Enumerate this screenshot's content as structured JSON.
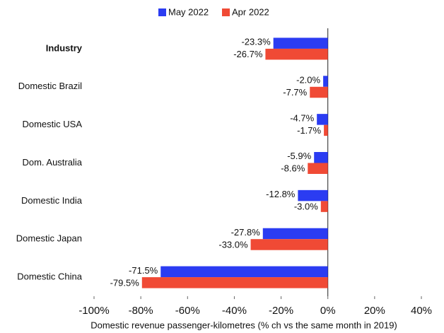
{
  "chart_data": {
    "type": "bar",
    "orientation": "horizontal",
    "x_axis_label": "Domestic revenue passenger-kilometres (% ch vs the same month in 2019)",
    "categories": [
      "Industry",
      "Domestic Brazil",
      "Domestic USA",
      "Dom. Australia",
      "Domestic India",
      "Domestic Japan",
      "Domestic China"
    ],
    "series": [
      {
        "name": "May 2022",
        "color": "#2b3cf2",
        "values": [
          -23.3,
          -2.0,
          -4.7,
          -5.9,
          -12.8,
          -27.8,
          -71.5
        ],
        "value_labels": [
          "-23.3%",
          "-2.0%",
          "-4.7%",
          "-5.9%",
          "-12.8%",
          "-27.8%",
          "-71.5%"
        ]
      },
      {
        "name": "Apr 2022",
        "color": "#f04a35",
        "values": [
          -26.7,
          -7.7,
          -1.7,
          -8.6,
          -3.0,
          -33.0,
          -79.5
        ],
        "value_labels": [
          "-26.7%",
          "-7.7%",
          "-1.7%",
          "-8.6%",
          "-3.0%",
          "-33.0%",
          "-79.5%"
        ]
      }
    ],
    "xlim": [
      -100,
      40
    ],
    "xticks": [
      {
        "value": -100,
        "label": "-100%"
      },
      {
        "value": -80,
        "label": "-80%"
      },
      {
        "value": -60,
        "label": "-60%"
      },
      {
        "value": -40,
        "label": "-40%"
      },
      {
        "value": -20,
        "label": "-20%"
      },
      {
        "value": 0,
        "label": "0%"
      },
      {
        "value": 20,
        "label": "20%"
      },
      {
        "value": 40,
        "label": "40%"
      }
    ],
    "grid": false,
    "legend": "top"
  }
}
